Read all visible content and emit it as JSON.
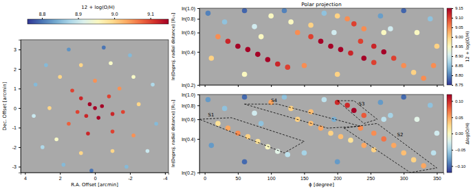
{
  "chart_data": [
    {
      "type": "scatter",
      "marker": "circle",
      "xlabel": "R.A. Offset [arcmin]",
      "ylabel": "Dec. Offset [arcmin]",
      "xlim": [
        4.25,
        -4.2
      ],
      "xticks": [
        4,
        2,
        0,
        -2,
        -4
      ],
      "ylim": [
        -3.3,
        3.5
      ],
      "yticks": [
        -3,
        -2,
        -1,
        0,
        1,
        2,
        3
      ],
      "x": [
        0,
        0.3,
        -0.4,
        0.5,
        -0.2,
        0.8,
        -0.8,
        1.0,
        -1.0,
        1.3,
        0,
        -1.4,
        -1.6,
        -1.0,
        0.4,
        1.5,
        2.0,
        0.8,
        -0.9,
        -2.2,
        -2.5,
        -2.2,
        -1.0,
        0.8,
        2.2,
        2.6,
        2.8,
        1.5,
        -0.5,
        -2.0,
        -3.3,
        -3.5,
        -3.0,
        -1.8,
        0.2,
        1.8,
        3.0,
        3.5,
        3.4
      ],
      "values": [
        0,
        0.2,
        0.1,
        -0.4,
        -0.5,
        0.5,
        0.6,
        -0.2,
        -0.3,
        0.9,
        1.4,
        1.0,
        -0.2,
        -1.2,
        -1.3,
        -0.8,
        1.6,
        2.2,
        2.3,
        1.6,
        0.2,
        -1.4,
        -2.2,
        -2.3,
        -1.6,
        0,
        2.2,
        3.0,
        3.1,
        2.7,
        1.2,
        -0.8,
        -2.2,
        -3.0,
        -3.2,
        -2.9,
        -2.0,
        -0.4,
        1.2
      ],
      "metallicity": [
        9.15,
        9.15,
        9.15,
        9.12,
        9.15,
        9.12,
        9.1,
        9.1,
        9.12,
        9.1,
        9.05,
        9.05,
        9.1,
        9.1,
        9.12,
        9.08,
        9.0,
        9.0,
        8.95,
        8.95,
        9.0,
        9.05,
        9.0,
        9.0,
        8.95,
        9.0,
        8.85,
        8.82,
        8.8,
        8.85,
        8.88,
        8.85,
        8.9,
        8.85,
        8.8,
        8.85,
        8.88,
        8.9,
        8.85
      ],
      "colorbar": {
        "label": "12 + log(O/H)",
        "range": [
          8.76,
          9.15
        ],
        "ticks": [
          8.8,
          8.9,
          {
            "value": 9,
            "label": "9.0"
          },
          9.1
        ]
      }
    },
    {
      "type": "scatter",
      "marker": "circle",
      "title": "Polar projection",
      "ylabel": "ln(Deproj. radial distance) [R₂₅]",
      "log": "y",
      "tick_labels": "y",
      "xlim": [
        -8,
        360
      ],
      "xticks": [
        0,
        50,
        100,
        150,
        200,
        250,
        300,
        350
      ],
      "ylim": [
        0.2,
        1.0
      ],
      "yticks": [
        {
          "value": 0.2,
          "label": "ln(0.2)"
        },
        {
          "value": 0.4,
          "label": "ln(0.4)"
        },
        {
          "value": 0.6,
          "label": "ln(0.6)"
        },
        {
          "value": 0.8,
          "label": "ln(0.8)"
        },
        {
          "value": 1.0,
          "label": "ln(1.0)"
        }
      ],
      "x": [
        20,
        35,
        50,
        65,
        80,
        95,
        110,
        125,
        140,
        160,
        175,
        190,
        205,
        220,
        240,
        255,
        235,
        255,
        270,
        285,
        300,
        315,
        330,
        200,
        215,
        225,
        240,
        100,
        130,
        160,
        5,
        30,
        60,
        75,
        120,
        180,
        195,
        265,
        280,
        300,
        320,
        340,
        350,
        10,
        60,
        150,
        200,
        345,
        270,
        85
      ],
      "values": [
        0.55,
        0.5,
        0.45,
        0.42,
        0.38,
        0.34,
        0.31,
        0.29,
        0.6,
        0.55,
        0.5,
        0.45,
        0.42,
        0.39,
        0.35,
        0.32,
        0.5,
        0.45,
        0.4,
        0.35,
        0.3,
        0.26,
        0.23,
        0.85,
        0.8,
        0.72,
        0.65,
        0.85,
        0.75,
        0.7,
        0.9,
        0.75,
        0.95,
        0.68,
        0.95,
        0.9,
        0.6,
        0.85,
        0.65,
        0.95,
        0.6,
        0.8,
        0.45,
        0.35,
        0.25,
        0.3,
        0.25,
        0.3,
        0.6,
        0.55
      ],
      "metallicity": [
        9.05,
        9.12,
        9.15,
        9.15,
        9.15,
        9.15,
        9.12,
        9.1,
        9.05,
        9.1,
        9.15,
        9.15,
        9.15,
        9.12,
        9.15,
        9.1,
        9.1,
        9.12,
        9.15,
        9.1,
        9.05,
        9.0,
        9.05,
        9.0,
        9.05,
        9.1,
        9.05,
        8.95,
        8.95,
        9.0,
        8.8,
        8.85,
        8.78,
        8.9,
        8.8,
        8.85,
        8.9,
        8.82,
        8.9,
        8.78,
        8.95,
        8.85,
        9.0,
        9.0,
        8.95,
        9.05,
        9.0,
        9.05,
        8.95,
        8.95
      ],
      "colorbar": {
        "label": "12 + log(O/H)",
        "range": [
          8.75,
          9.15
        ],
        "ticks": [
          8.75,
          {
            "value": 8.8,
            "label": "8.80"
          },
          8.85,
          {
            "value": 8.9,
            "label": "8.90"
          },
          8.95,
          {
            "value": 9,
            "label": "9.00"
          },
          9.05,
          {
            "value": 9.1,
            "label": "9.10"
          },
          9.15
        ]
      }
    },
    {
      "type": "scatter",
      "marker": "circle",
      "xlabel": "ϕ [degree]",
      "ylabel": "ln(Deproj. radial distance) [R₂₅]",
      "log": "y",
      "xlim": [
        -8,
        360
      ],
      "xticks": [
        0,
        50,
        100,
        150,
        200,
        250,
        300,
        350
      ],
      "ylim": [
        0.2,
        1.0
      ],
      "yticks": [
        {
          "value": 0.2,
          "label": "ln(0.2)"
        },
        {
          "value": 0.4,
          "label": "ln(0.4)"
        },
        {
          "value": 0.6,
          "label": "ln(0.6)"
        },
        {
          "value": 0.8,
          "label": "ln(0.8)"
        },
        {
          "value": 1.0,
          "label": "ln(1.0)"
        }
      ],
      "x": [
        20,
        35,
        50,
        65,
        80,
        95,
        110,
        125,
        140,
        160,
        175,
        190,
        205,
        220,
        240,
        255,
        235,
        255,
        270,
        285,
        300,
        315,
        330,
        200,
        215,
        225,
        240,
        100,
        130,
        160,
        5,
        30,
        60,
        75,
        120,
        180,
        195,
        265,
        280,
        300,
        320,
        340,
        350,
        10,
        60,
        150,
        200,
        345,
        270,
        85
      ],
      "values": [
        0.55,
        0.5,
        0.45,
        0.42,
        0.38,
        0.34,
        0.31,
        0.29,
        0.6,
        0.55,
        0.5,
        0.45,
        0.42,
        0.39,
        0.35,
        0.32,
        0.5,
        0.45,
        0.4,
        0.35,
        0.3,
        0.26,
        0.23,
        0.85,
        0.8,
        0.72,
        0.65,
        0.85,
        0.75,
        0.7,
        0.9,
        0.75,
        0.95,
        0.68,
        0.95,
        0.9,
        0.6,
        0.85,
        0.65,
        0.95,
        0.6,
        0.8,
        0.45,
        0.35,
        0.25,
        0.3,
        0.25,
        0.3,
        0.6,
        0.55
      ],
      "residual": [
        0.02,
        0.05,
        0.06,
        0.03,
        0.02,
        0,
        -0.02,
        -0.04,
        0.03,
        0.04,
        0.05,
        0.03,
        0.04,
        0.02,
        0.05,
        0.03,
        0.06,
        0.06,
        0.07,
        0.05,
        0.04,
        0.03,
        0.05,
        0.1,
        0.1,
        0.12,
        0.08,
        0.05,
        0.03,
        0.04,
        -0.08,
        -0.06,
        -0.1,
        -0.03,
        -0.06,
        -0.04,
        -0.07,
        -0.08,
        -0.05,
        -0.1,
        -0.02,
        -0.06,
        -0.03,
        -0.08,
        -0.1,
        -0.05,
        -0.08,
        -0.04,
        -0.04,
        -0.06
      ],
      "colorbar": {
        "label": "Δlog(O/H)",
        "range": [
          -0.12,
          0.12
        ],
        "ticks": [
          {
            "value": -0.1,
            "label": "−0.10"
          },
          {
            "value": -0.05,
            "label": "−0.05"
          },
          {
            "value": 0,
            "label": "0.00"
          },
          {
            "value": 0.05,
            "label": "0.05"
          },
          {
            "value": 0.1,
            "label": "0.10"
          }
        ]
      },
      "annotations": [
        {
          "text": "S1",
          "x": 5,
          "y": 0.64,
          "polygon_x": [
            -8,
            40,
            150,
            120
          ],
          "polygon_y": [
            0.6,
            0.62,
            0.38,
            0.3
          ]
        },
        {
          "text": "S4",
          "x": 100,
          "y": 0.86,
          "polygon_x": [
            60,
            110,
            235,
            185
          ],
          "polygon_y": [
            0.82,
            0.82,
            0.52,
            0.5
          ]
        },
        {
          "text": "S3",
          "x": 232,
          "y": 0.8,
          "polygon_x": [
            200,
            225,
            260,
            240
          ],
          "polygon_y": [
            0.88,
            0.88,
            0.6,
            0.55
          ]
        },
        {
          "text": "S2",
          "x": 290,
          "y": 0.42,
          "polygon_x": [
            210,
            260,
            350,
            310
          ],
          "polygon_y": [
            0.5,
            0.55,
            0.22,
            0.2
          ]
        }
      ]
    }
  ]
}
